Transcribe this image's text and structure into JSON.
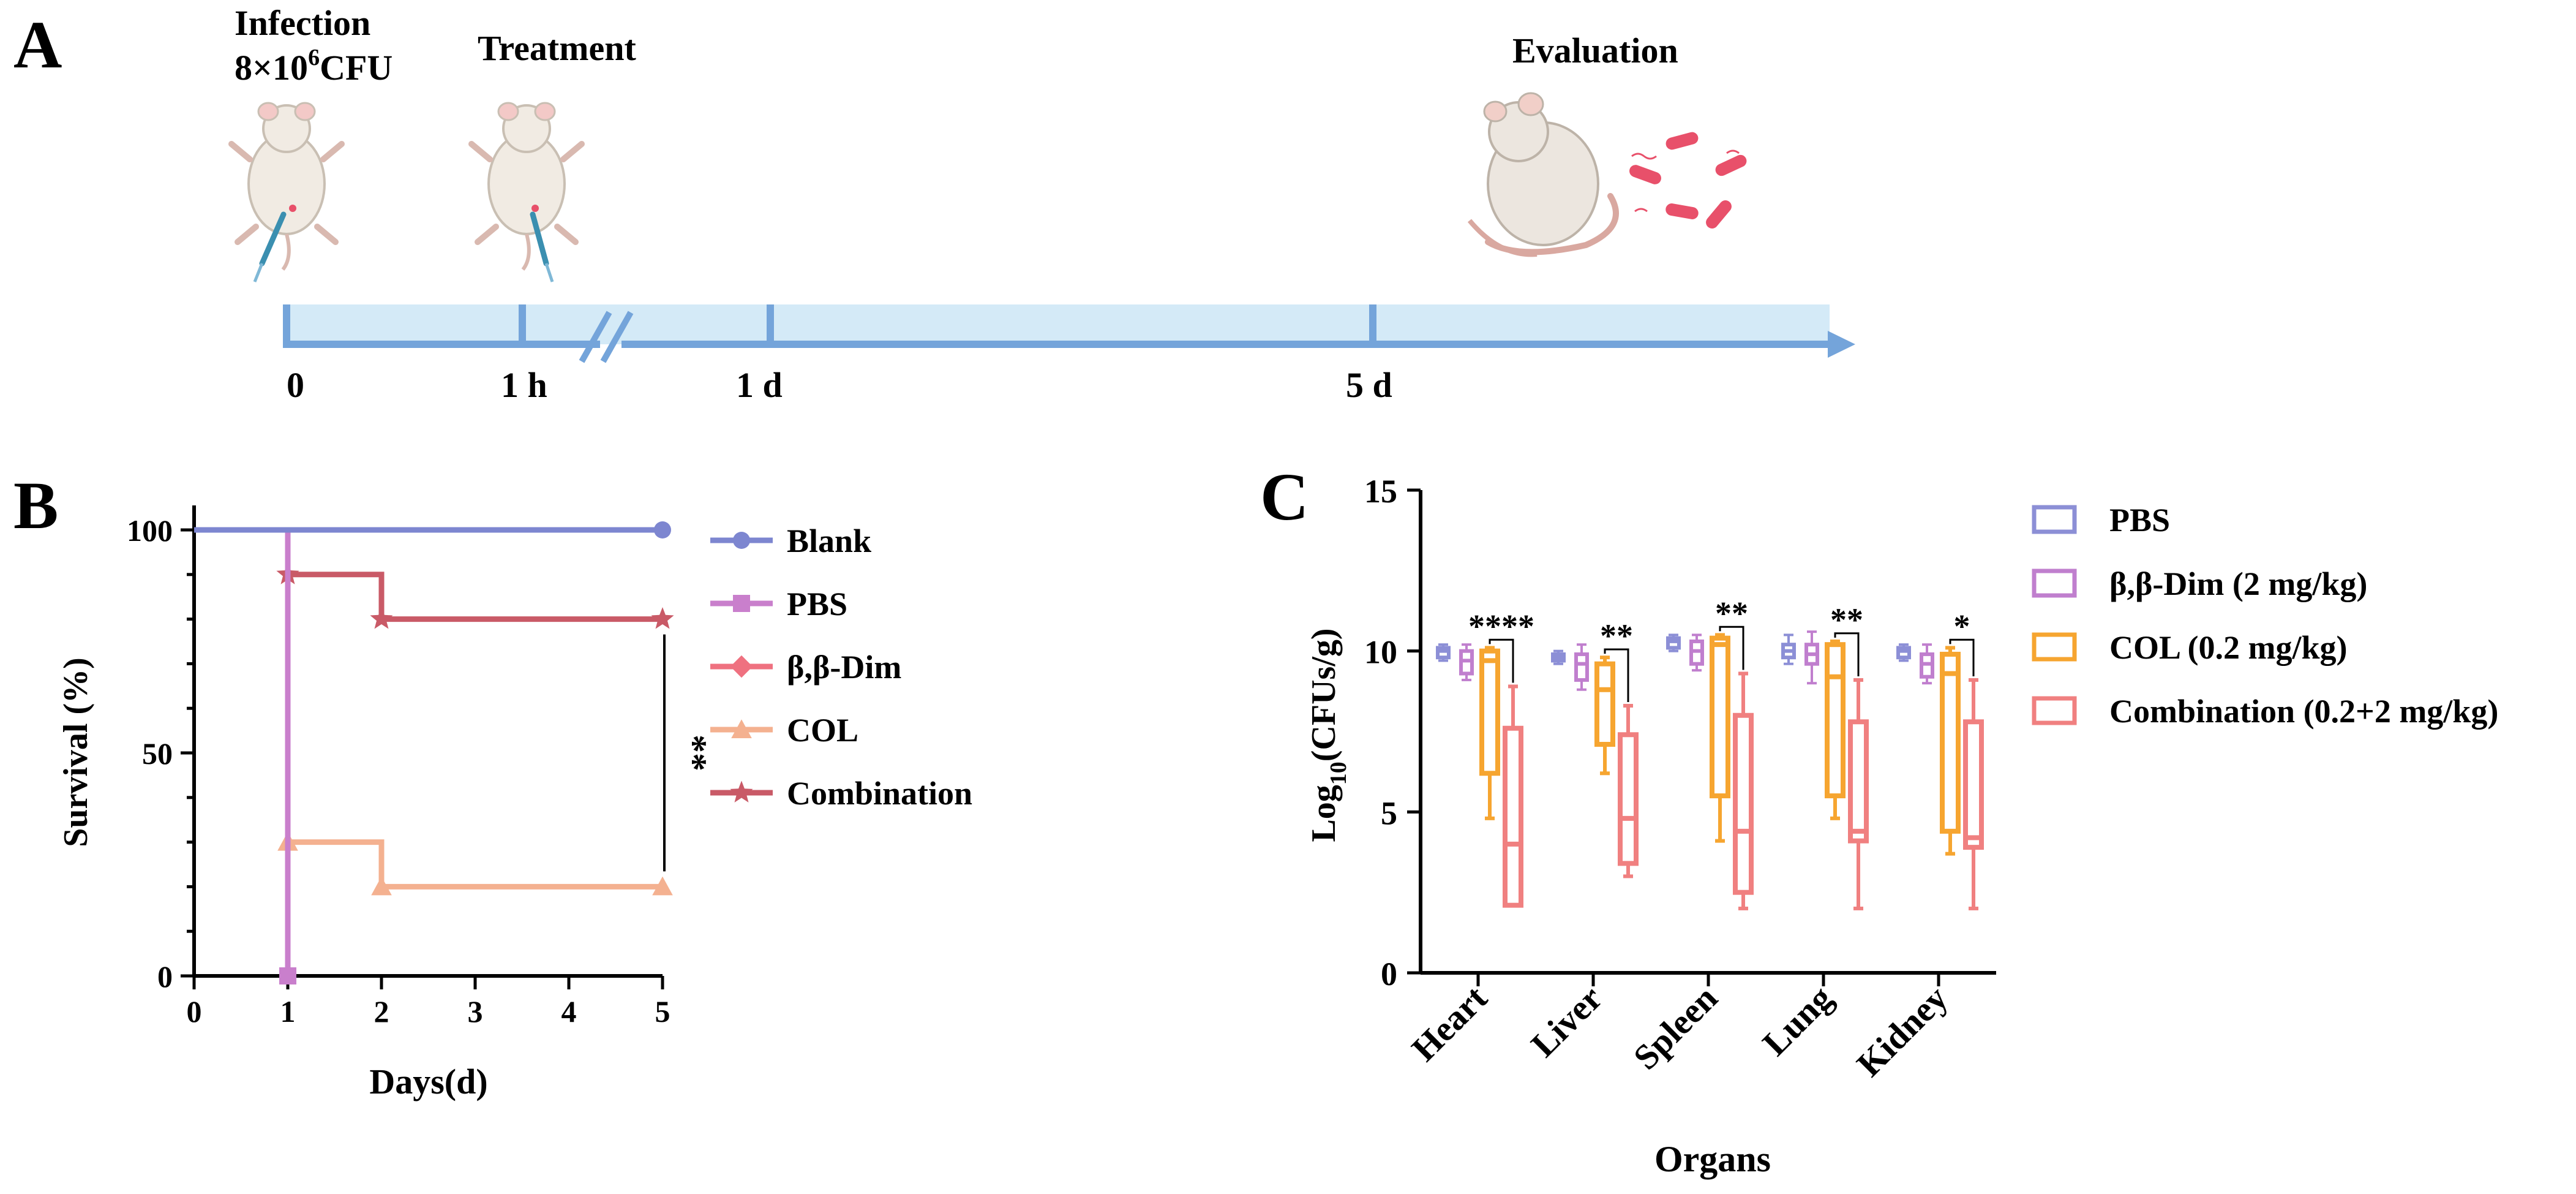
{
  "panel_labels": {
    "a": "A",
    "b": "B",
    "c": "C"
  },
  "panel_a": {
    "infection_line1": "Infection",
    "infection_line2_pre": "8×10",
    "infection_line2_sup": "6",
    "infection_line2_post": "CFU",
    "treatment": "Treatment",
    "evaluation": "Evaluation",
    "timeline_labels": [
      "0",
      "1 h",
      "1 d",
      "5 d"
    ],
    "colors": {
      "timeline_fill": "#d4eaf7",
      "timeline_line": "#74a4da",
      "bacteria": "#e8506a"
    }
  },
  "chart_data": [
    {
      "type": "line",
      "subtype": "step-survival",
      "xlabel": "Days(d)",
      "ylabel": "Survival (%)",
      "xlim": [
        0,
        5
      ],
      "ylim": [
        0,
        100
      ],
      "xticks": [
        0,
        1,
        2,
        3,
        4,
        5
      ],
      "yticks": [
        0,
        50,
        100
      ],
      "legend_position": "right",
      "series": [
        {
          "name": "Blank",
          "color": "#7d86d0",
          "marker": "circle",
          "x": [
            0,
            5
          ],
          "y": [
            100,
            100
          ]
        },
        {
          "name": "PBS",
          "color": "#c97fcc",
          "marker": "square",
          "x": [
            0,
            1,
            1
          ],
          "y": [
            100,
            100,
            0
          ]
        },
        {
          "name": "β,β-Dim",
          "color": "#ef7180",
          "marker": "diamond",
          "x": [],
          "y": []
        },
        {
          "name": "COL",
          "color": "#f4b190",
          "marker": "triangle",
          "x": [
            0,
            1,
            1,
            2,
            2,
            5
          ],
          "y": [
            100,
            100,
            30,
            30,
            20,
            20
          ]
        },
        {
          "name": "Combination",
          "color": "#c95a67",
          "marker": "star",
          "x": [
            0,
            1,
            1,
            2,
            2,
            5
          ],
          "y": [
            100,
            100,
            90,
            90,
            80,
            80
          ]
        }
      ],
      "annotations": [
        {
          "text": "**",
          "between": [
            "Combination",
            "COL"
          ],
          "x": 5
        }
      ]
    },
    {
      "type": "box",
      "xlabel": "Organs",
      "ylabel_pre": "Log",
      "ylabel_sub": "10",
      "ylabel_post": "(CFUs/g)",
      "ylim": [
        0,
        15
      ],
      "yticks": [
        0,
        5,
        10,
        15
      ],
      "categories": [
        "Heart",
        "Liver",
        "Spleen",
        "Lung",
        "Kidney"
      ],
      "legend_position": "right",
      "series": [
        {
          "name": "PBS",
          "color": "#8c8fd6",
          "boxes": [
            {
              "min": 9.7,
              "q1": 9.8,
              "median": 10.0,
              "q3": 10.1,
              "max": 10.2
            },
            {
              "min": 9.6,
              "q1": 9.7,
              "median": 9.8,
              "q3": 9.9,
              "max": 10.0
            },
            {
              "min": 10.0,
              "q1": 10.1,
              "median": 10.3,
              "q3": 10.4,
              "max": 10.5
            },
            {
              "min": 9.6,
              "q1": 9.8,
              "median": 10.0,
              "q3": 10.2,
              "max": 10.5
            },
            {
              "min": 9.7,
              "q1": 9.8,
              "median": 10.0,
              "q3": 10.1,
              "max": 10.2
            }
          ]
        },
        {
          "name": "β,β-Dim (2 mg/kg)",
          "color": "#c07fce",
          "boxes": [
            {
              "min": 9.1,
              "q1": 9.3,
              "median": 9.7,
              "q3": 10.0,
              "max": 10.2
            },
            {
              "min": 8.8,
              "q1": 9.1,
              "median": 9.6,
              "q3": 9.9,
              "max": 10.2
            },
            {
              "min": 9.4,
              "q1": 9.6,
              "median": 10.0,
              "q3": 10.3,
              "max": 10.5
            },
            {
              "min": 9.0,
              "q1": 9.6,
              "median": 9.9,
              "q3": 10.2,
              "max": 10.6
            },
            {
              "min": 9.0,
              "q1": 9.2,
              "median": 9.6,
              "q3": 9.9,
              "max": 10.2
            }
          ]
        },
        {
          "name": "COL (0.2 mg/kg)",
          "color": "#f6a530",
          "boxes": [
            {
              "min": 4.8,
              "q1": 6.2,
              "median": 9.7,
              "q3": 10.0,
              "max": 10.1
            },
            {
              "min": 6.2,
              "q1": 7.1,
              "median": 8.8,
              "q3": 9.6,
              "max": 9.8
            },
            {
              "min": 4.1,
              "q1": 5.5,
              "median": 10.2,
              "q3": 10.4,
              "max": 10.5
            },
            {
              "min": 4.8,
              "q1": 5.5,
              "median": 9.2,
              "q3": 10.2,
              "max": 10.3
            },
            {
              "min": 3.7,
              "q1": 4.4,
              "median": 9.3,
              "q3": 9.9,
              "max": 10.1
            }
          ]
        },
        {
          "name": "Combination (0.2+2 mg/kg)",
          "color": "#f08080",
          "boxes": [
            {
              "min": 2.1,
              "q1": 2.1,
              "median": 4.0,
              "q3": 7.6,
              "max": 8.9
            },
            {
              "min": 3.0,
              "q1": 3.4,
              "median": 4.8,
              "q3": 7.4,
              "max": 8.3
            },
            {
              "min": 2.0,
              "q1": 2.5,
              "median": 4.4,
              "q3": 8.0,
              "max": 9.3
            },
            {
              "min": 2.0,
              "q1": 4.1,
              "median": 4.4,
              "q3": 7.8,
              "max": 9.1
            },
            {
              "min": 2.0,
              "q1": 3.9,
              "median": 4.2,
              "q3": 7.8,
              "max": 9.1
            }
          ]
        }
      ],
      "significance": [
        "****",
        "**",
        "**",
        "**",
        "*"
      ]
    }
  ]
}
